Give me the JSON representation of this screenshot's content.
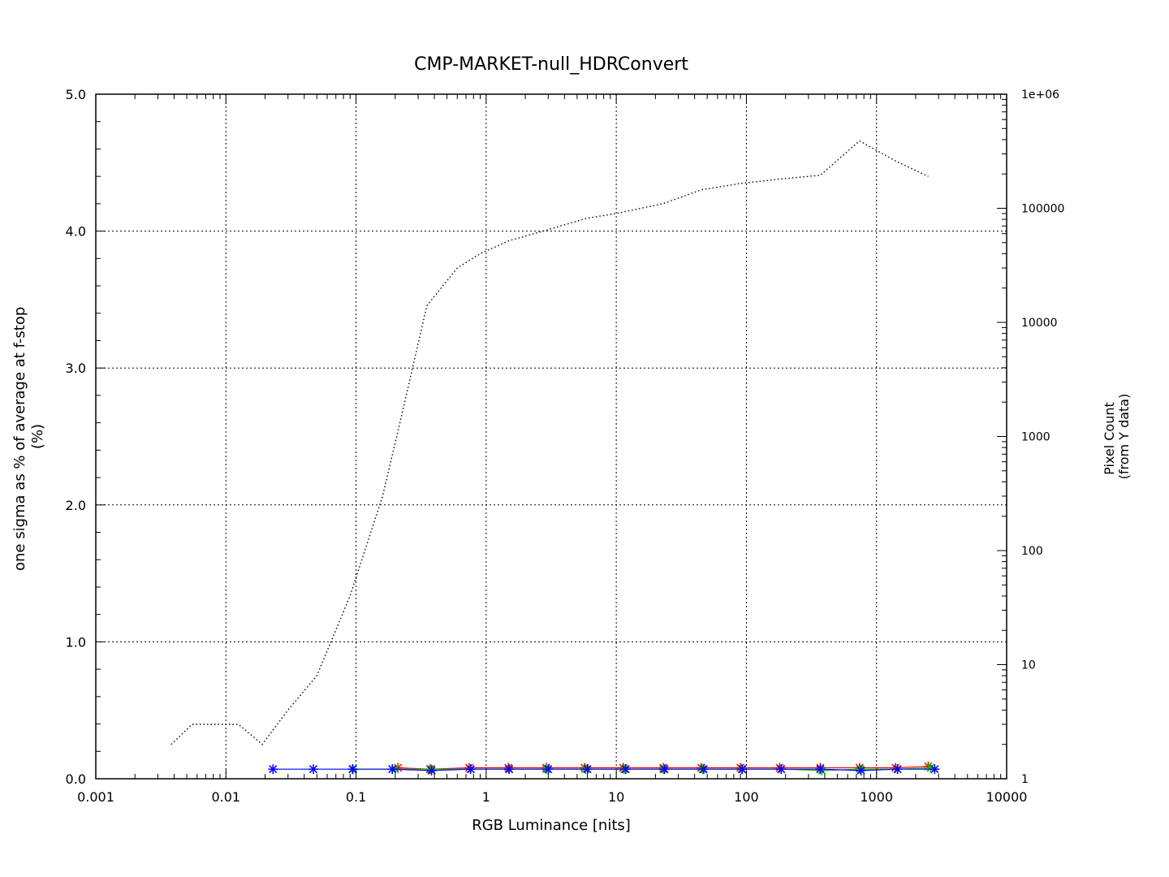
{
  "chart_data": {
    "type": "line",
    "title": "CMP-MARKET-null_HDRConvert",
    "xlabel": "RGB Luminance [nits]",
    "ylabel_lines": [
      "one sigma as % of average at f-stop",
      "(%)"
    ],
    "y2label_lines": [
      "Pixel Count",
      "(from Y data)"
    ],
    "x_scale": "log",
    "xlim": [
      0.001,
      10000
    ],
    "ylim": [
      0,
      5
    ],
    "y2_scale": "log",
    "y2lim": [
      1,
      1000000
    ],
    "grid": true,
    "x_ticks": [
      "0.001",
      "0.01",
      "0.1",
      "1",
      "10",
      "100",
      "1000",
      "10000"
    ],
    "y_ticks": [
      "0.0",
      "1.0",
      "2.0",
      "3.0",
      "4.0",
      "5.0"
    ],
    "y2_ticks": [
      "1",
      "10",
      "100",
      "1000",
      "10000",
      "100000",
      "1e+06"
    ],
    "colors": {
      "red": "#ff0000",
      "green": "#00c000",
      "blue": "#0000ff",
      "count": "#000000"
    },
    "series": [
      {
        "color": "red",
        "axis": "left",
        "points": [
          [
            0.21,
            0.08
          ],
          [
            0.37,
            0.07
          ],
          [
            0.74,
            0.08
          ],
          [
            1.48,
            0.08
          ],
          [
            2.9,
            0.08
          ],
          [
            5.7,
            0.08
          ],
          [
            11.3,
            0.08
          ],
          [
            23,
            0.08
          ],
          [
            45,
            0.08
          ],
          [
            90,
            0.08
          ],
          [
            180,
            0.08
          ],
          [
            370,
            0.08
          ],
          [
            740,
            0.08
          ],
          [
            1400,
            0.08
          ],
          [
            2500,
            0.09
          ]
        ]
      },
      {
        "color": "green",
        "axis": "left",
        "points": [
          [
            0.095,
            0.07
          ],
          [
            0.2,
            0.07
          ],
          [
            0.38,
            0.07
          ],
          [
            0.76,
            0.07
          ],
          [
            1.5,
            0.07
          ],
          [
            2.9,
            0.07
          ],
          [
            5.8,
            0.07
          ],
          [
            11.5,
            0.07
          ],
          [
            23,
            0.07
          ],
          [
            46,
            0.07
          ],
          [
            92,
            0.07
          ],
          [
            185,
            0.07
          ],
          [
            380,
            0.06
          ],
          [
            750,
            0.07
          ],
          [
            1450,
            0.07
          ],
          [
            2600,
            0.08
          ]
        ]
      },
      {
        "color": "blue",
        "axis": "left",
        "points": [
          [
            0.023,
            0.07
          ],
          [
            0.047,
            0.07
          ],
          [
            0.094,
            0.07
          ],
          [
            0.19,
            0.07
          ],
          [
            0.38,
            0.06
          ],
          [
            0.76,
            0.07
          ],
          [
            1.5,
            0.07
          ],
          [
            3.0,
            0.07
          ],
          [
            6.0,
            0.07
          ],
          [
            11.8,
            0.07
          ],
          [
            23.5,
            0.07
          ],
          [
            47,
            0.07
          ],
          [
            93,
            0.07
          ],
          [
            185,
            0.07
          ],
          [
            370,
            0.07
          ],
          [
            760,
            0.06
          ],
          [
            1450,
            0.07
          ],
          [
            2800,
            0.07
          ]
        ]
      },
      {
        "color": "count",
        "axis": "right",
        "style": "dotted",
        "points": [
          [
            0.0038,
            2
          ],
          [
            0.0055,
            3
          ],
          [
            0.0075,
            3
          ],
          [
            0.0125,
            3
          ],
          [
            0.019,
            2
          ],
          [
            0.03,
            4
          ],
          [
            0.05,
            8
          ],
          [
            0.09,
            40
          ],
          [
            0.16,
            300
          ],
          [
            0.22,
            1400
          ],
          [
            0.35,
            14000
          ],
          [
            0.6,
            30000
          ],
          [
            0.9,
            40000
          ],
          [
            1.5,
            52000
          ],
          [
            3,
            65000
          ],
          [
            6,
            82000
          ],
          [
            10,
            90000
          ],
          [
            23,
            110000
          ],
          [
            45,
            145000
          ],
          [
            90,
            165000
          ],
          [
            180,
            180000
          ],
          [
            370,
            195000
          ],
          [
            740,
            390000
          ],
          [
            1400,
            260000
          ],
          [
            2500,
            190000
          ]
        ]
      }
    ]
  }
}
